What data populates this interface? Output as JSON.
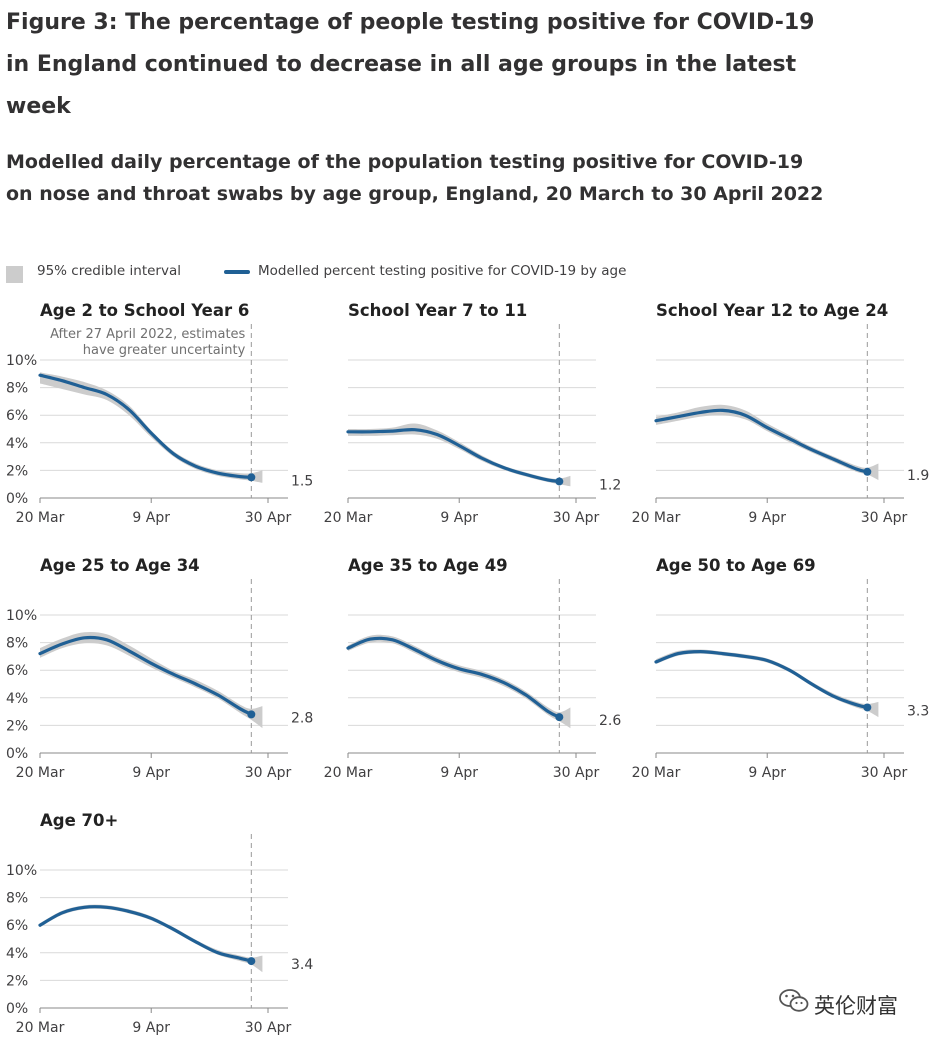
{
  "figure_title": "Figure 3: The percentage of people testing positive for COVID-19 in England continued to decrease in all age groups in the latest week",
  "subtitle": "Modelled daily percentage of the population testing positive for COVID-19 on nose and throat swabs by age group, England, 20 March to 30 April 2022",
  "legend": {
    "interval_label": "95% credible interval",
    "line_label": "Modelled percent testing positive for COVID-19 by age"
  },
  "annotation": {
    "line1": "After 27 April 2022, estimates",
    "line2": "have greater uncertainty"
  },
  "watermark": "英伦财富",
  "colors": {
    "line": "#206095",
    "interval": "#cccccc",
    "grid": "#d9d9d9",
    "axis": "#888888"
  },
  "chart_data": {
    "type": "line",
    "x_axis": {
      "start": "20 Mar",
      "end": "30 Apr",
      "ticks": [
        "20 Mar",
        "9 Apr",
        "30 Apr"
      ],
      "tick_days": [
        0,
        20,
        41
      ]
    },
    "y_axis": {
      "ylim": [
        0,
        10
      ],
      "ticks": [
        "0%",
        "2%",
        "4%",
        "6%",
        "8%",
        "10%"
      ],
      "tick_values": [
        0,
        2,
        4,
        6,
        8,
        10
      ],
      "unit": "%"
    },
    "uncertainty_marker_day": 38,
    "panels": [
      {
        "title": "Age 2 to School Year 6",
        "end_label": "1.5",
        "series": [
          [
            0,
            8.9
          ],
          [
            4,
            8.5
          ],
          [
            8,
            8.0
          ],
          [
            12,
            7.5
          ],
          [
            16,
            6.4
          ],
          [
            20,
            4.7
          ],
          [
            24,
            3.2
          ],
          [
            28,
            2.3
          ],
          [
            32,
            1.8
          ],
          [
            36,
            1.55
          ],
          [
            38,
            1.5
          ]
        ],
        "interval": [
          [
            0,
            8.3,
            9.1
          ],
          [
            4,
            7.9,
            8.8
          ],
          [
            8,
            7.5,
            8.4
          ],
          [
            12,
            7.1,
            7.8
          ],
          [
            16,
            6.0,
            6.7
          ],
          [
            20,
            4.4,
            4.9
          ],
          [
            24,
            3.0,
            3.4
          ],
          [
            28,
            2.1,
            2.5
          ],
          [
            32,
            1.6,
            2.0
          ],
          [
            36,
            1.35,
            1.8
          ],
          [
            38,
            1.25,
            1.8
          ],
          [
            40,
            1.1,
            2.0
          ]
        ]
      },
      {
        "title": "School Year 7 to 11",
        "end_label": "1.2",
        "series": [
          [
            0,
            4.8
          ],
          [
            4,
            4.8
          ],
          [
            8,
            4.85
          ],
          [
            12,
            4.95
          ],
          [
            16,
            4.6
          ],
          [
            20,
            3.8
          ],
          [
            24,
            2.9
          ],
          [
            28,
            2.2
          ],
          [
            32,
            1.7
          ],
          [
            36,
            1.3
          ],
          [
            38,
            1.2
          ]
        ],
        "interval": [
          [
            0,
            4.5,
            5.0
          ],
          [
            4,
            4.5,
            5.0
          ],
          [
            8,
            4.55,
            5.1
          ],
          [
            12,
            4.6,
            5.4
          ],
          [
            16,
            4.3,
            4.9
          ],
          [
            20,
            3.55,
            4.05
          ],
          [
            24,
            2.7,
            3.1
          ],
          [
            28,
            2.05,
            2.35
          ],
          [
            32,
            1.55,
            1.85
          ],
          [
            36,
            1.15,
            1.45
          ],
          [
            38,
            1.0,
            1.4
          ],
          [
            40,
            0.85,
            1.6
          ]
        ]
      },
      {
        "title": "School Year 12 to Age 24",
        "end_label": "1.9",
        "series": [
          [
            0,
            5.6
          ],
          [
            4,
            5.9
          ],
          [
            8,
            6.2
          ],
          [
            12,
            6.35
          ],
          [
            16,
            6.0
          ],
          [
            20,
            5.1
          ],
          [
            24,
            4.3
          ],
          [
            28,
            3.5
          ],
          [
            32,
            2.8
          ],
          [
            36,
            2.1
          ],
          [
            38,
            1.9
          ]
        ],
        "interval": [
          [
            0,
            5.3,
            5.9
          ],
          [
            4,
            5.6,
            6.2
          ],
          [
            8,
            5.9,
            6.6
          ],
          [
            12,
            6.0,
            6.75
          ],
          [
            16,
            5.7,
            6.35
          ],
          [
            20,
            4.85,
            5.4
          ],
          [
            24,
            4.05,
            4.55
          ],
          [
            28,
            3.3,
            3.7
          ],
          [
            32,
            2.6,
            3.0
          ],
          [
            36,
            1.9,
            2.35
          ],
          [
            38,
            1.7,
            2.2
          ],
          [
            40,
            1.3,
            2.5
          ]
        ]
      },
      {
        "title": "Age 25 to Age 34",
        "end_label": "2.8",
        "series": [
          [
            0,
            7.2
          ],
          [
            4,
            7.9
          ],
          [
            8,
            8.35
          ],
          [
            12,
            8.2
          ],
          [
            16,
            7.4
          ],
          [
            20,
            6.5
          ],
          [
            24,
            5.7
          ],
          [
            28,
            5.0
          ],
          [
            32,
            4.2
          ],
          [
            36,
            3.2
          ],
          [
            38,
            2.8
          ]
        ],
        "interval": [
          [
            0,
            6.9,
            7.6
          ],
          [
            4,
            7.6,
            8.3
          ],
          [
            8,
            7.95,
            8.75
          ],
          [
            12,
            7.8,
            8.6
          ],
          [
            16,
            7.05,
            7.8
          ],
          [
            20,
            6.2,
            6.85
          ],
          [
            24,
            5.45,
            5.95
          ],
          [
            28,
            4.75,
            5.3
          ],
          [
            32,
            3.95,
            4.5
          ],
          [
            36,
            2.9,
            3.5
          ],
          [
            38,
            2.4,
            3.2
          ],
          [
            40,
            1.8,
            3.4
          ]
        ]
      },
      {
        "title": "Age 35 to Age 49",
        "end_label": "2.6",
        "series": [
          [
            0,
            7.6
          ],
          [
            4,
            8.25
          ],
          [
            8,
            8.2
          ],
          [
            12,
            7.5
          ],
          [
            16,
            6.7
          ],
          [
            20,
            6.1
          ],
          [
            24,
            5.7
          ],
          [
            28,
            5.1
          ],
          [
            32,
            4.2
          ],
          [
            36,
            3.0
          ],
          [
            38,
            2.6
          ]
        ],
        "interval": [
          [
            0,
            7.4,
            7.8
          ],
          [
            4,
            8.0,
            8.5
          ],
          [
            8,
            7.95,
            8.45
          ],
          [
            12,
            7.25,
            7.75
          ],
          [
            16,
            6.45,
            6.95
          ],
          [
            20,
            5.85,
            6.35
          ],
          [
            24,
            5.45,
            5.95
          ],
          [
            28,
            4.85,
            5.35
          ],
          [
            32,
            3.95,
            4.45
          ],
          [
            36,
            2.75,
            3.3
          ],
          [
            38,
            2.3,
            2.95
          ],
          [
            40,
            1.8,
            3.3
          ]
        ]
      },
      {
        "title": "Age 50 to Age 69",
        "end_label": "3.3",
        "series": [
          [
            0,
            6.6
          ],
          [
            4,
            7.2
          ],
          [
            8,
            7.35
          ],
          [
            12,
            7.2
          ],
          [
            16,
            7.0
          ],
          [
            20,
            6.7
          ],
          [
            24,
            6.0
          ],
          [
            28,
            5.0
          ],
          [
            32,
            4.1
          ],
          [
            36,
            3.5
          ],
          [
            38,
            3.3
          ]
        ],
        "interval": [
          [
            0,
            6.45,
            6.8
          ],
          [
            4,
            7.05,
            7.4
          ],
          [
            8,
            7.2,
            7.5
          ],
          [
            12,
            7.05,
            7.35
          ],
          [
            16,
            6.85,
            7.15
          ],
          [
            20,
            6.55,
            6.85
          ],
          [
            24,
            5.85,
            6.15
          ],
          [
            28,
            4.85,
            5.15
          ],
          [
            32,
            3.95,
            4.3
          ],
          [
            36,
            3.3,
            3.7
          ],
          [
            38,
            3.05,
            3.55
          ],
          [
            40,
            2.6,
            3.7
          ]
        ]
      },
      {
        "title": "Age 70+",
        "end_label": "3.4",
        "series": [
          [
            0,
            6.0
          ],
          [
            4,
            6.9
          ],
          [
            8,
            7.3
          ],
          [
            12,
            7.3
          ],
          [
            16,
            7.0
          ],
          [
            20,
            6.5
          ],
          [
            24,
            5.7
          ],
          [
            28,
            4.8
          ],
          [
            32,
            4.0
          ],
          [
            36,
            3.6
          ],
          [
            38,
            3.4
          ]
        ],
        "interval": [
          [
            0,
            5.85,
            6.15
          ],
          [
            4,
            6.75,
            7.05
          ],
          [
            8,
            7.15,
            7.45
          ],
          [
            12,
            7.15,
            7.45
          ],
          [
            16,
            6.85,
            7.15
          ],
          [
            20,
            6.35,
            6.65
          ],
          [
            24,
            5.55,
            5.85
          ],
          [
            28,
            4.65,
            4.95
          ],
          [
            32,
            3.85,
            4.2
          ],
          [
            36,
            3.4,
            3.8
          ],
          [
            38,
            3.15,
            3.65
          ],
          [
            40,
            2.6,
            3.8
          ]
        ]
      }
    ]
  }
}
